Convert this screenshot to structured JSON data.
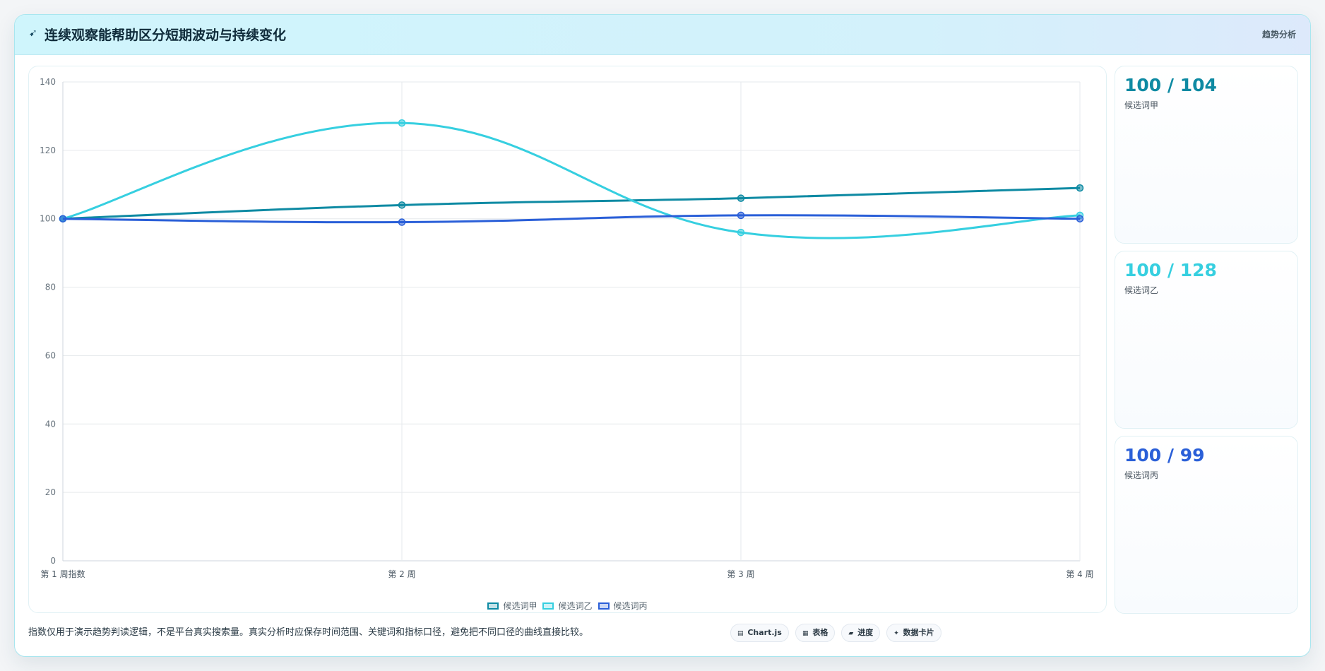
{
  "header": {
    "icon": "sparkle-icon",
    "title": "连续观察能帮助区分短期波动与持续变化",
    "tag": "趋势分析"
  },
  "chart_data": {
    "type": "line",
    "categories": [
      "第 1 周指数",
      "第 2 周",
      "第 3 周",
      "第 4 周"
    ],
    "series": [
      {
        "name": "候选词甲",
        "values": [
          100,
          104,
          106,
          109
        ],
        "color": "#0e8aa3"
      },
      {
        "name": "候选词乙",
        "values": [
          100,
          128,
          96,
          101
        ],
        "color": "#36cfe0"
      },
      {
        "name": "候选词丙",
        "values": [
          100,
          99,
          101,
          100
        ],
        "color": "#2a5fd8"
      }
    ],
    "ylim": [
      0,
      140
    ],
    "yticks": [
      0,
      20,
      40,
      60,
      80,
      100,
      120,
      140
    ],
    "grid": true,
    "legend_position": "bottom",
    "smooth": true
  },
  "cards": [
    {
      "value": "100 / 104",
      "label": "候选词甲",
      "color": "#0e8aa3"
    },
    {
      "value": "100 / 128",
      "label": "候选词乙",
      "color": "#36cfe0"
    },
    {
      "value": "100 / 99",
      "label": "候选词丙",
      "color": "#2a5fd8"
    }
  ],
  "footnote": "指数仅用于演示趋势判读逻辑，不是平台真实搜索量。真实分析时应保存时间范围、关键词和指标口径，避免把不同口径的曲线直接比较。",
  "chips": [
    {
      "icon": "chart-icon",
      "glyph": "▤",
      "label": "Chart.js"
    },
    {
      "icon": "table-icon",
      "glyph": "▦",
      "label": "表格"
    },
    {
      "icon": "progress-icon",
      "glyph": "▰",
      "label": "进度"
    },
    {
      "icon": "card-icon",
      "glyph": "✦",
      "label": "数据卡片"
    }
  ]
}
